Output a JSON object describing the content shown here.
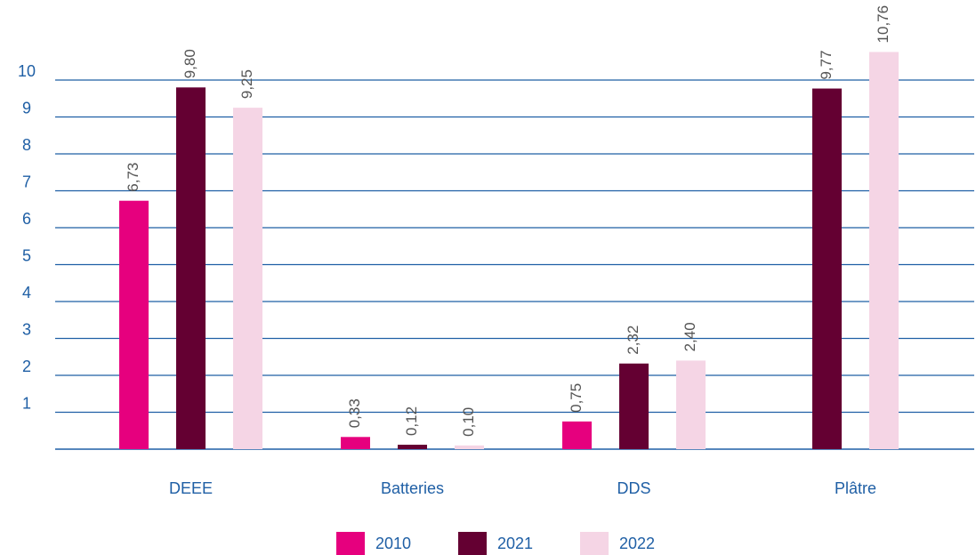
{
  "chart_data": {
    "type": "bar",
    "categories": [
      "DEEE",
      "Batteries",
      "DDS",
      "Plâtre"
    ],
    "series": [
      {
        "name": "2010",
        "color": "#e6007e",
        "values": [
          6.73,
          0.33,
          0.75,
          null
        ],
        "value_labels": [
          "6,73",
          "0,33",
          "0,75",
          null
        ]
      },
      {
        "name": "2021",
        "color": "#640032",
        "values": [
          9.8,
          0.12,
          2.32,
          9.77
        ],
        "value_labels": [
          "9,80",
          "0,12",
          "2,32",
          "9,77"
        ]
      },
      {
        "name": "2022",
        "color": "#f5d5e5",
        "values": [
          9.25,
          0.1,
          2.4,
          10.76
        ],
        "value_labels": [
          "9,25",
          "0,10",
          "2,40",
          "10,76"
        ]
      }
    ],
    "ylim": [
      0,
      11
    ],
    "yticks": [
      1,
      2,
      3,
      4,
      5,
      6,
      7,
      8,
      9,
      10
    ],
    "grid": true,
    "legend": "bottom"
  }
}
